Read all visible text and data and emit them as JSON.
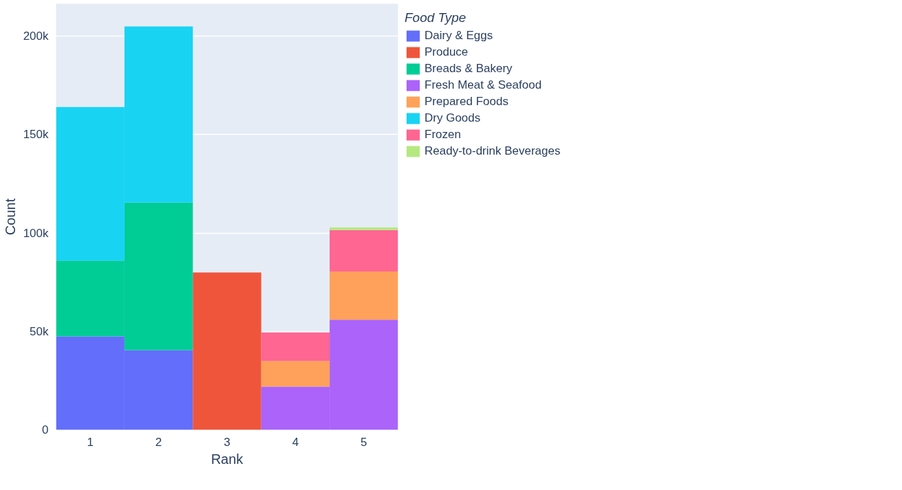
{
  "chart_data": {
    "type": "bar",
    "stacked": true,
    "xlabel": "Rank",
    "ylabel": "Count",
    "legend_title": "Food Type",
    "categories": [
      "1",
      "2",
      "3",
      "4",
      "5"
    ],
    "series": [
      {
        "name": "Dairy & Eggs",
        "color": "#636efa",
        "values": [
          47500,
          40500,
          null,
          null,
          null
        ]
      },
      {
        "name": "Produce",
        "color": "#ef553b",
        "values": [
          null,
          null,
          80000,
          null,
          null
        ]
      },
      {
        "name": "Breads & Bakery",
        "color": "#00cc96",
        "values": [
          38500,
          75000,
          null,
          null,
          null
        ]
      },
      {
        "name": "Fresh Meat & Seafood",
        "color": "#ab63fa",
        "values": [
          null,
          null,
          null,
          22000,
          56000
        ]
      },
      {
        "name": "Prepared Foods",
        "color": "#ffa15a",
        "values": [
          null,
          null,
          null,
          13000,
          24500
        ]
      },
      {
        "name": "Dry Goods",
        "color": "#19d3f3",
        "values": [
          78000,
          89500,
          null,
          null,
          null
        ]
      },
      {
        "name": "Frozen",
        "color": "#ff6692",
        "values": [
          null,
          null,
          null,
          14500,
          21000
        ]
      },
      {
        "name": "Ready-to-drink Beverages",
        "color": "#b6e880",
        "values": [
          null,
          null,
          null,
          null,
          1300
        ]
      }
    ],
    "ylim": [
      0,
      216500
    ],
    "yticks": [
      0,
      {
        "value": 50000,
        "label": "50k"
      },
      {
        "value": 100000,
        "label": "100k"
      },
      {
        "value": 150000,
        "label": "150k"
      },
      {
        "value": 200000,
        "label": "200k"
      }
    ],
    "grid": "y",
    "legend": "right"
  }
}
